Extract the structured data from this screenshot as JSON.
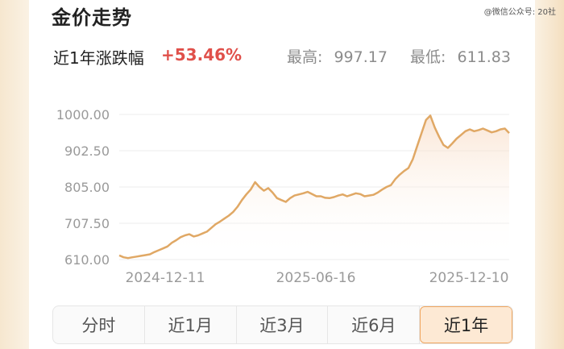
{
  "header": {
    "title": "金价走势",
    "watermark": "@微信公众号: 20社"
  },
  "summary": {
    "label": "近1年涨跌幅",
    "change": "+53.46%",
    "high_label": "最高:",
    "high_value": "997.17",
    "low_label": "最低:",
    "low_value": "611.83"
  },
  "tabs": [
    {
      "label": "分时",
      "active": false
    },
    {
      "label": "近1月",
      "active": false
    },
    {
      "label": "近3月",
      "active": false
    },
    {
      "label": "近6月",
      "active": false
    },
    {
      "label": "近1年",
      "active": true
    }
  ],
  "colors": {
    "line": "#e0a865",
    "fill_top": "#f6d2b4",
    "gain": "#e0504a",
    "active_tab_bg": "#fde9d4",
    "active_tab_border": "#f0a760"
  },
  "chart_data": {
    "type": "area",
    "ylim": [
      610,
      1000
    ],
    "yticks": [
      "1000.00",
      "902.50",
      "805.00",
      "707.50",
      "610.00"
    ],
    "xticks": [
      "2024-12-11",
      "2025-06-16",
      "2025-12-10"
    ],
    "series": [
      {
        "values": [
          621,
          616,
          614,
          616,
          618,
          620,
          622,
          624,
          630,
          635,
          640,
          645,
          655,
          662,
          670,
          675,
          678,
          672,
          675,
          680,
          685,
          695,
          705,
          712,
          720,
          728,
          738,
          752,
          770,
          785,
          798,
          818,
          805,
          795,
          802,
          790,
          775,
          770,
          765,
          775,
          782,
          785,
          788,
          792,
          786,
          780,
          780,
          776,
          775,
          778,
          782,
          785,
          780,
          784,
          788,
          786,
          780,
          782,
          784,
          790,
          798,
          805,
          810,
          826,
          838,
          848,
          856,
          880,
          915,
          950,
          985,
          997,
          965,
          940,
          918,
          910,
          922,
          935,
          945,
          955,
          960,
          955,
          958,
          962,
          957,
          952,
          955,
          960,
          962,
          950
        ]
      }
    ]
  }
}
